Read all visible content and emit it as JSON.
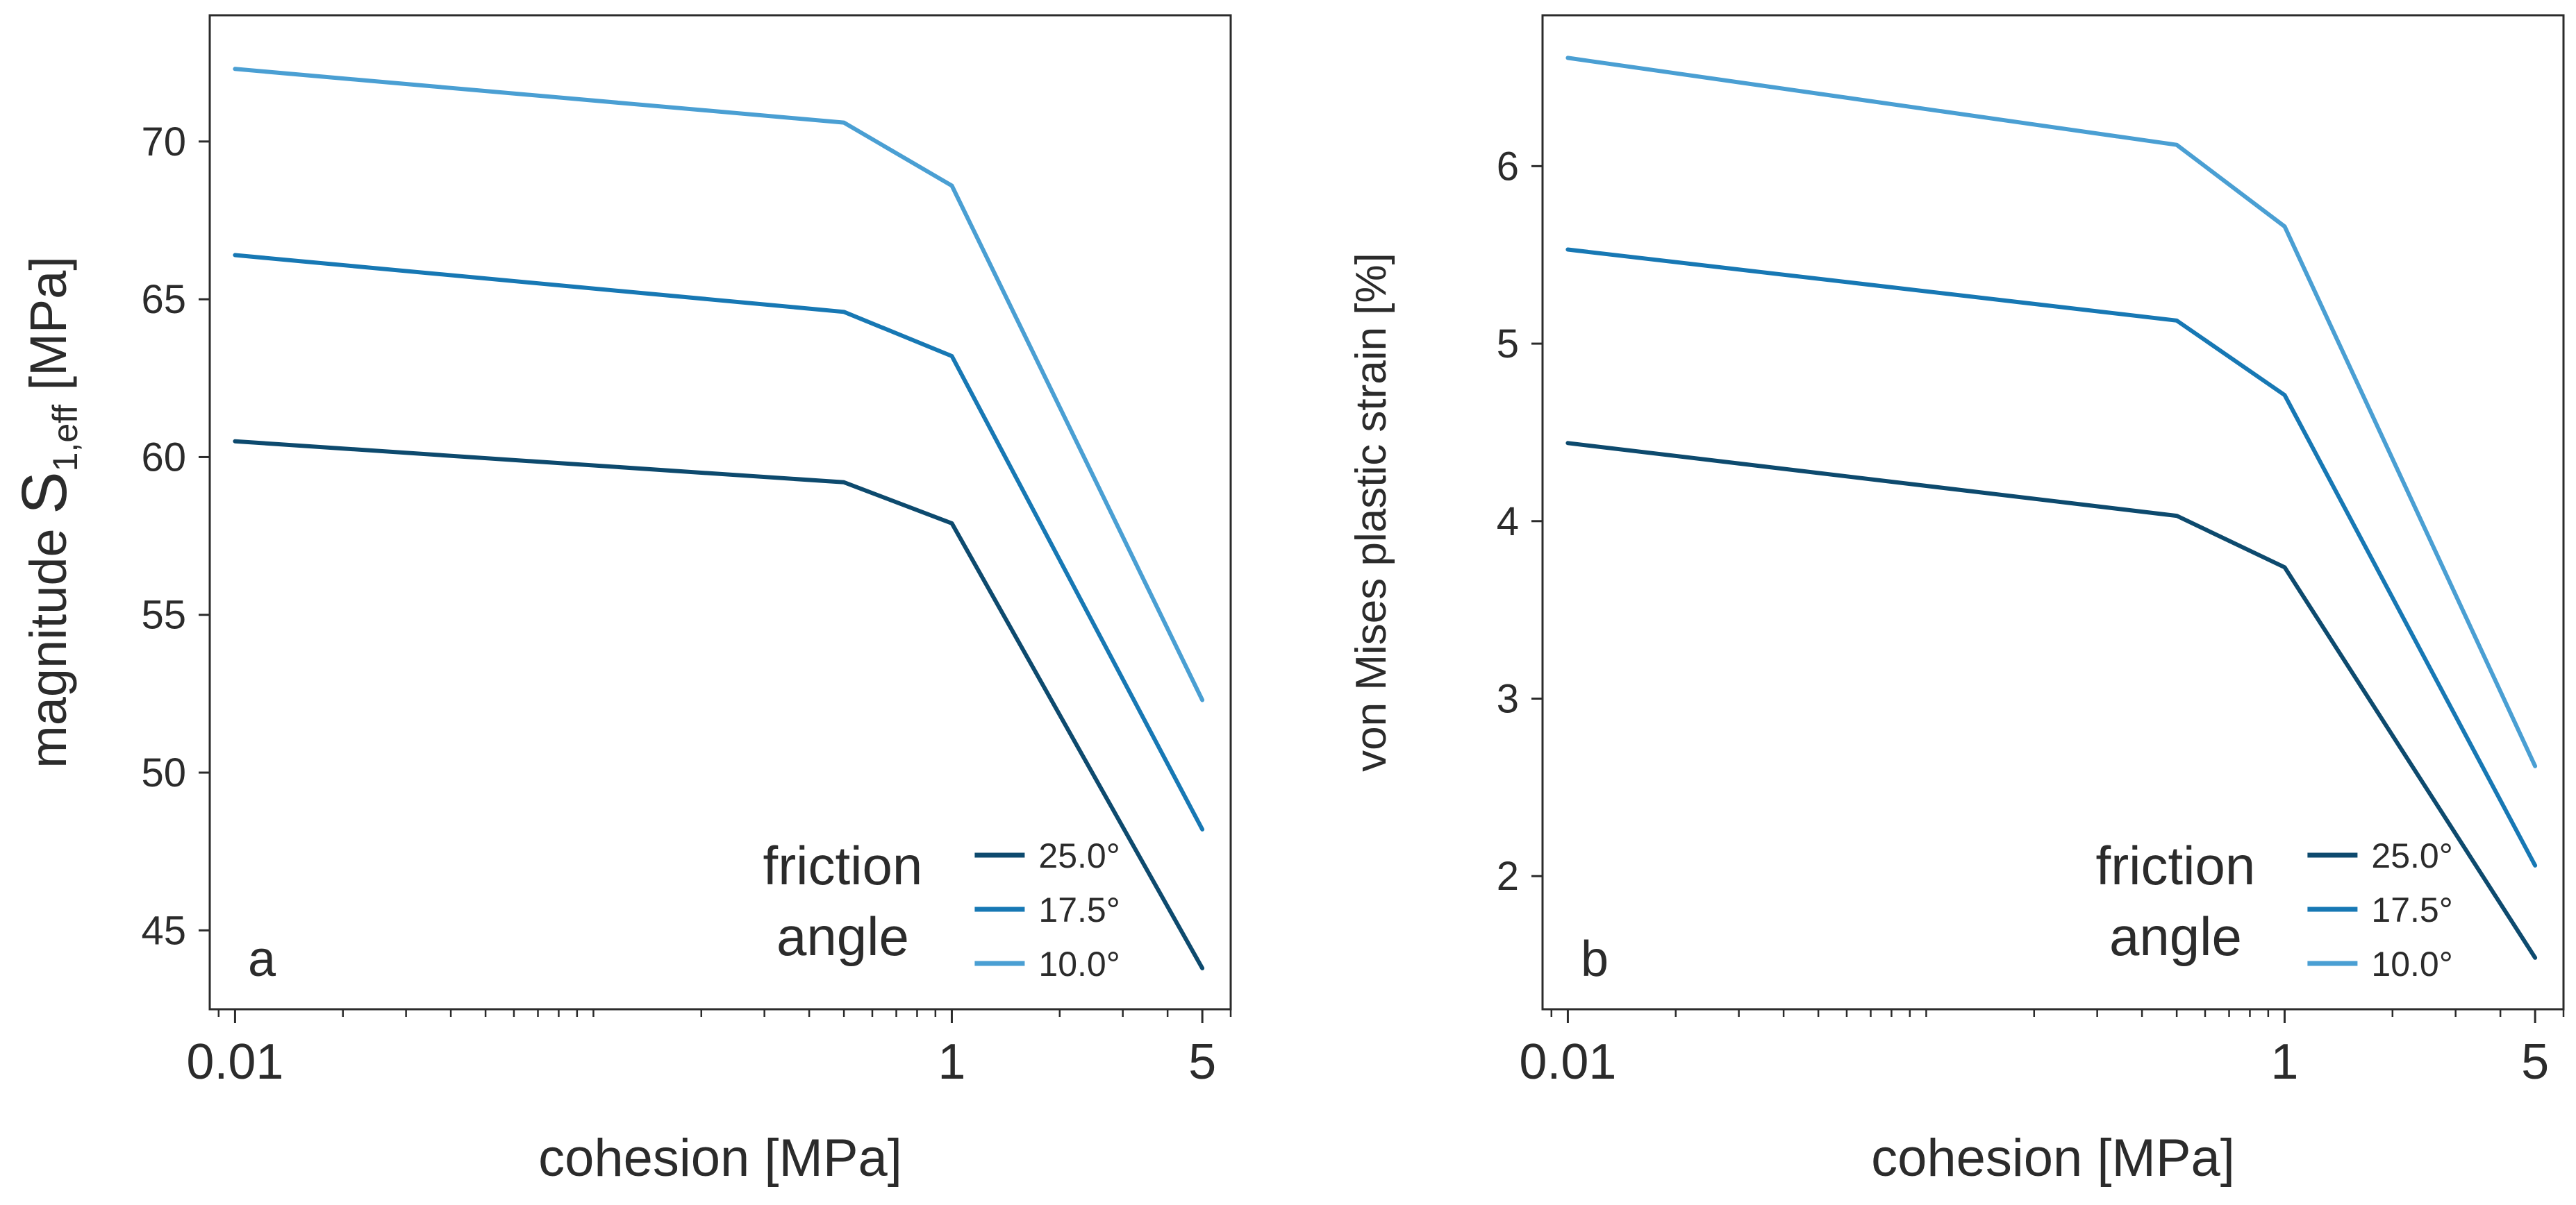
{
  "legend": {
    "title_line1": "friction",
    "title_line2": "angle",
    "entries": [
      "25.0°",
      "17.5°",
      "10.0°"
    ],
    "colors": [
      "#0d4a6e",
      "#1778b4",
      "#4a9fd3"
    ]
  },
  "chart_data": [
    {
      "type": "line",
      "panel_label": "a",
      "xlabel": "cohesion [MPa]",
      "ylabel": {
        "prefix": "magnitude ",
        "symbol": "S",
        "subscript": "1,eff",
        "suffix": " [MPa]"
      },
      "x_scale": "log",
      "xlim": [
        0.0085,
        6.0
      ],
      "x_ticks": [
        0.01,
        1,
        5
      ],
      "x_tick_labels": [
        "0.01",
        "1",
        "5"
      ],
      "ylim": [
        42.5,
        74.0
      ],
      "y_ticks": [
        45,
        50,
        55,
        60,
        65,
        70
      ],
      "y_tick_labels": [
        "45",
        "50",
        "55",
        "60",
        "65",
        "70"
      ],
      "grid": false,
      "legend_position": "bottom-right",
      "x": [
        0.01,
        0.5,
        1,
        5
      ],
      "series": [
        {
          "name": "25.0°",
          "color": "#0d4a6e",
          "values": [
            60.5,
            59.2,
            57.9,
            43.8
          ]
        },
        {
          "name": "17.5°",
          "color": "#1778b4",
          "values": [
            66.4,
            64.6,
            63.2,
            48.2
          ]
        },
        {
          "name": "10.0°",
          "color": "#4a9fd3",
          "values": [
            72.3,
            70.6,
            68.6,
            52.3
          ]
        }
      ]
    },
    {
      "type": "line",
      "panel_label": "b",
      "xlabel": "cohesion [MPa]",
      "ylabel": {
        "prefix": "von Mises plastic strain [%]",
        "symbol": "",
        "subscript": "",
        "suffix": ""
      },
      "x_scale": "log",
      "xlim": [
        0.0085,
        6.0
      ],
      "x_ticks": [
        0.01,
        1,
        5
      ],
      "x_tick_labels": [
        "0.01",
        "1",
        "5"
      ],
      "ylim": [
        1.25,
        6.85
      ],
      "y_ticks": [
        2,
        3,
        4,
        5,
        6
      ],
      "y_tick_labels": [
        "2",
        "3",
        "4",
        "5",
        "6"
      ],
      "grid": false,
      "legend_position": "bottom-right",
      "x": [
        0.01,
        0.5,
        1,
        5
      ],
      "series": [
        {
          "name": "25.0°",
          "color": "#0d4a6e",
          "values": [
            4.44,
            4.03,
            3.74,
            1.54
          ]
        },
        {
          "name": "17.5°",
          "color": "#1778b4",
          "values": [
            5.53,
            5.13,
            4.71,
            2.06
          ]
        },
        {
          "name": "10.0°",
          "color": "#4a9fd3",
          "values": [
            6.61,
            6.12,
            5.66,
            2.62
          ]
        }
      ]
    }
  ]
}
